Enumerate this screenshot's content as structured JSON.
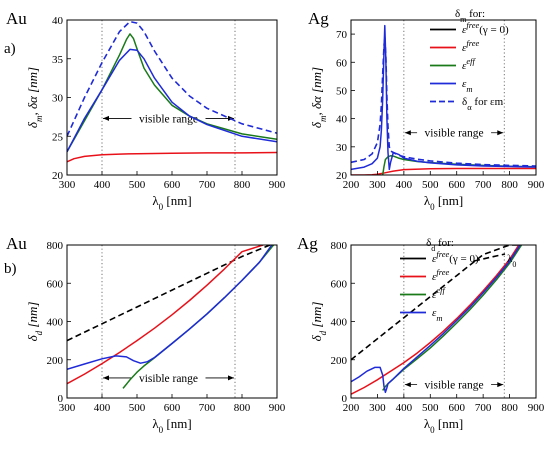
{
  "panel_labels": {
    "a": "a)",
    "b": "b)"
  },
  "legend_top": {
    "title": "δm for:",
    "entries": [
      "εfree(γ = 0)",
      "εfree",
      "εeff",
      "εm",
      "δα for εm"
    ]
  },
  "legend_bottom": {
    "title": "δd for:",
    "entries": [
      "εfree(γ = 0)",
      "εfree",
      "εeff",
      "εm"
    ],
    "line_label": "λ0"
  },
  "colors": {
    "free_gamma0": "#000000",
    "free": "#e8111a",
    "eff": "#1a7a1a",
    "m": "#1f2bd8",
    "alpha": "#1f2bd8",
    "vline": "#666666"
  },
  "chart_data": [
    {
      "panel": "top-left",
      "type": "line",
      "metal": "Au",
      "xlabel": "λ0 [nm]",
      "ylabel": "δm, δα [nm]",
      "xlim": [
        300,
        900
      ],
      "ylim": [
        20,
        40
      ],
      "xticks": [
        300,
        400,
        500,
        600,
        700,
        800,
        900
      ],
      "yticks": [
        20,
        25,
        30,
        35,
        40
      ],
      "vlines": [
        400,
        780
      ],
      "annotation": "visible range",
      "annotation_y": 27.3,
      "series": [
        {
          "key": "free",
          "x": [
            300,
            320,
            350,
            400,
            450,
            500,
            600,
            700,
            800,
            900
          ],
          "y": [
            21.7,
            22.1,
            22.4,
            22.6,
            22.7,
            22.75,
            22.8,
            22.85,
            22.85,
            22.9
          ]
        },
        {
          "key": "eff",
          "x": [
            300,
            350,
            400,
            450,
            470,
            480,
            490,
            500,
            520,
            550,
            600,
            650,
            700,
            800,
            900
          ],
          "y": [
            23.0,
            27.0,
            31.0,
            35.5,
            37.5,
            38.2,
            37.6,
            36.3,
            33.8,
            31.6,
            29.0,
            27.6,
            26.6,
            25.3,
            24.6
          ]
        },
        {
          "key": "m",
          "x": [
            300,
            350,
            400,
            450,
            480,
            500,
            520,
            550,
            600,
            650,
            700,
            800,
            900
          ],
          "y": [
            23.0,
            27.3,
            31.0,
            34.8,
            36.2,
            36.1,
            35.0,
            32.5,
            29.4,
            27.6,
            26.5,
            25.0,
            24.3
          ]
        },
        {
          "key": "alpha",
          "x": [
            300,
            350,
            400,
            450,
            480,
            500,
            520,
            550,
            600,
            650,
            700,
            800,
            900
          ],
          "y": [
            25.0,
            30.0,
            34.5,
            38.5,
            39.8,
            39.6,
            38.5,
            36.0,
            32.5,
            30.2,
            28.6,
            26.6,
            25.4
          ]
        }
      ]
    },
    {
      "panel": "top-right",
      "type": "line",
      "metal": "Ag",
      "xlabel": "λ0 [nm]",
      "ylabel": "δm, δα [nm]",
      "xlim": [
        200,
        900
      ],
      "ylim": [
        20,
        75
      ],
      "xticks": [
        200,
        300,
        400,
        500,
        600,
        700,
        800,
        900
      ],
      "yticks": [
        20,
        30,
        40,
        50,
        60,
        70
      ],
      "vlines": [
        400,
        780
      ],
      "annotation": "visible range",
      "annotation_y": 35,
      "series": [
        {
          "key": "free",
          "x": [
            200,
            250,
            280,
            300,
            320,
            340,
            360,
            400,
            500,
            600,
            700,
            800,
            900
          ],
          "y": [
            20,
            20,
            20.1,
            20.3,
            20.6,
            21.0,
            21.4,
            21.9,
            22.2,
            22.3,
            22.3,
            22.3,
            22.3
          ]
        },
        {
          "key": "eff",
          "x": [
            320,
            325,
            330,
            340,
            350,
            360,
            380,
            400,
            450,
            500,
            600,
            700,
            800,
            900
          ],
          "y": [
            20,
            23.0,
            25.5,
            26.5,
            26.8,
            26.7,
            26.0,
            25.5,
            24.8,
            24.4,
            23.8,
            23.4,
            23.1,
            22.9
          ]
        },
        {
          "key": "m",
          "x": [
            200,
            250,
            280,
            300,
            310,
            315,
            320,
            325,
            328,
            332,
            336,
            340,
            345,
            350,
            360,
            380,
            400,
            450,
            500,
            600,
            700,
            800,
            900
          ],
          "y": [
            22.0,
            22.8,
            24.0,
            26.0,
            30.0,
            36.0,
            47.0,
            64.0,
            73.0,
            60.0,
            40.0,
            28.0,
            22.0,
            24.5,
            28.0,
            27.3,
            26.0,
            24.9,
            24.3,
            23.6,
            23.2,
            23.0,
            22.8
          ]
        },
        {
          "key": "alpha",
          "x": [
            200,
            250,
            280,
            300,
            310,
            315,
            320,
            325,
            328,
            332,
            336,
            340,
            345,
            350,
            360,
            380,
            400,
            450,
            500,
            600,
            700,
            800,
            900
          ],
          "y": [
            24.5,
            25.5,
            27.5,
            31.5,
            38.0,
            45.0,
            56.0,
            66.0,
            69.0,
            62.0,
            48.0,
            37.0,
            30.0,
            28.5,
            28.0,
            27.0,
            26.5,
            25.6,
            25.0,
            24.2,
            23.7,
            23.4,
            23.2
          ]
        }
      ]
    },
    {
      "panel": "bottom-left",
      "type": "line",
      "metal": "Au",
      "xlabel": "λ0 [nm]",
      "ylabel": "δd [nm]",
      "xlim": [
        300,
        900
      ],
      "ylim": [
        0,
        800
      ],
      "xticks": [
        300,
        400,
        500,
        600,
        700,
        800,
        900
      ],
      "yticks": [
        0,
        200,
        400,
        600,
        800
      ],
      "vlines": [
        400,
        780
      ],
      "annotation": "visible range",
      "annotation_y": 105,
      "series": [
        {
          "key": "free_gamma0",
          "x": [
            300,
            400,
            500,
            600,
            700,
            800,
            880
          ],
          "y": [
            300,
            388,
            476,
            564,
            652,
            740,
            800
          ]
        },
        {
          "key": "free",
          "x": [
            300,
            350,
            400,
            450,
            500,
            550,
            600,
            650,
            700,
            750,
            800,
            860
          ],
          "y": [
            75,
            125,
            180,
            238,
            300,
            365,
            435,
            510,
            590,
            675,
            765,
            800
          ]
        },
        {
          "key": "eff",
          "x": [
            460,
            480,
            500,
            520,
            550,
            600,
            650,
            700,
            750,
            800,
            850,
            890
          ],
          "y": [
            50,
            95,
            135,
            168,
            210,
            285,
            360,
            440,
            525,
            615,
            710,
            800
          ]
        },
        {
          "key": "m",
          "x": [
            300,
            350,
            400,
            440,
            470,
            490,
            510,
            530,
            550,
            600,
            650,
            700,
            750,
            800,
            850,
            885
          ],
          "y": [
            150,
            178,
            205,
            220,
            215,
            195,
            182,
            190,
            212,
            285,
            360,
            440,
            525,
            615,
            710,
            800
          ]
        }
      ]
    },
    {
      "panel": "bottom-right",
      "type": "line",
      "metal": "Ag",
      "xlabel": "λ0 [nm]",
      "ylabel": "δd [nm]",
      "xlim": [
        200,
        900
      ],
      "ylim": [
        0,
        800
      ],
      "xticks": [
        200,
        300,
        400,
        500,
        600,
        700,
        800,
        900
      ],
      "yticks": [
        0,
        200,
        400,
        600,
        800
      ],
      "vlines": [
        400,
        780
      ],
      "annotation": "visible range",
      "annotation_y": 70,
      "series": [
        {
          "key": "free_gamma0",
          "x": [
            200,
            300,
            400,
            500,
            600,
            700,
            800,
            840
          ],
          "y": [
            200,
            310,
            420,
            530,
            640,
            750,
            800,
            800
          ]
        },
        {
          "key": "free",
          "x": [
            200,
            250,
            300,
            350,
            400,
            450,
            500,
            550,
            600,
            650,
            700,
            750,
            800,
            835
          ],
          "y": [
            20,
            55,
            95,
            140,
            185,
            235,
            290,
            350,
            415,
            485,
            560,
            640,
            725,
            800
          ]
        },
        {
          "key": "eff",
          "x": [
            320,
            330,
            340,
            360,
            400,
            450,
            500,
            550,
            600,
            650,
            700,
            750,
            800,
            845
          ],
          "y": [
            40,
            60,
            75,
            100,
            150,
            205,
            262,
            325,
            392,
            462,
            537,
            618,
            705,
            800
          ]
        },
        {
          "key": "m",
          "x": [
            200,
            230,
            260,
            290,
            310,
            320,
            325,
            330,
            335,
            340,
            360,
            400,
            450,
            500,
            550,
            600,
            650,
            700,
            750,
            800,
            840
          ],
          "y": [
            85,
            110,
            140,
            160,
            160,
            120,
            60,
            30,
            50,
            75,
            100,
            155,
            215,
            275,
            338,
            405,
            475,
            550,
            630,
            715,
            800
          ]
        }
      ]
    }
  ]
}
